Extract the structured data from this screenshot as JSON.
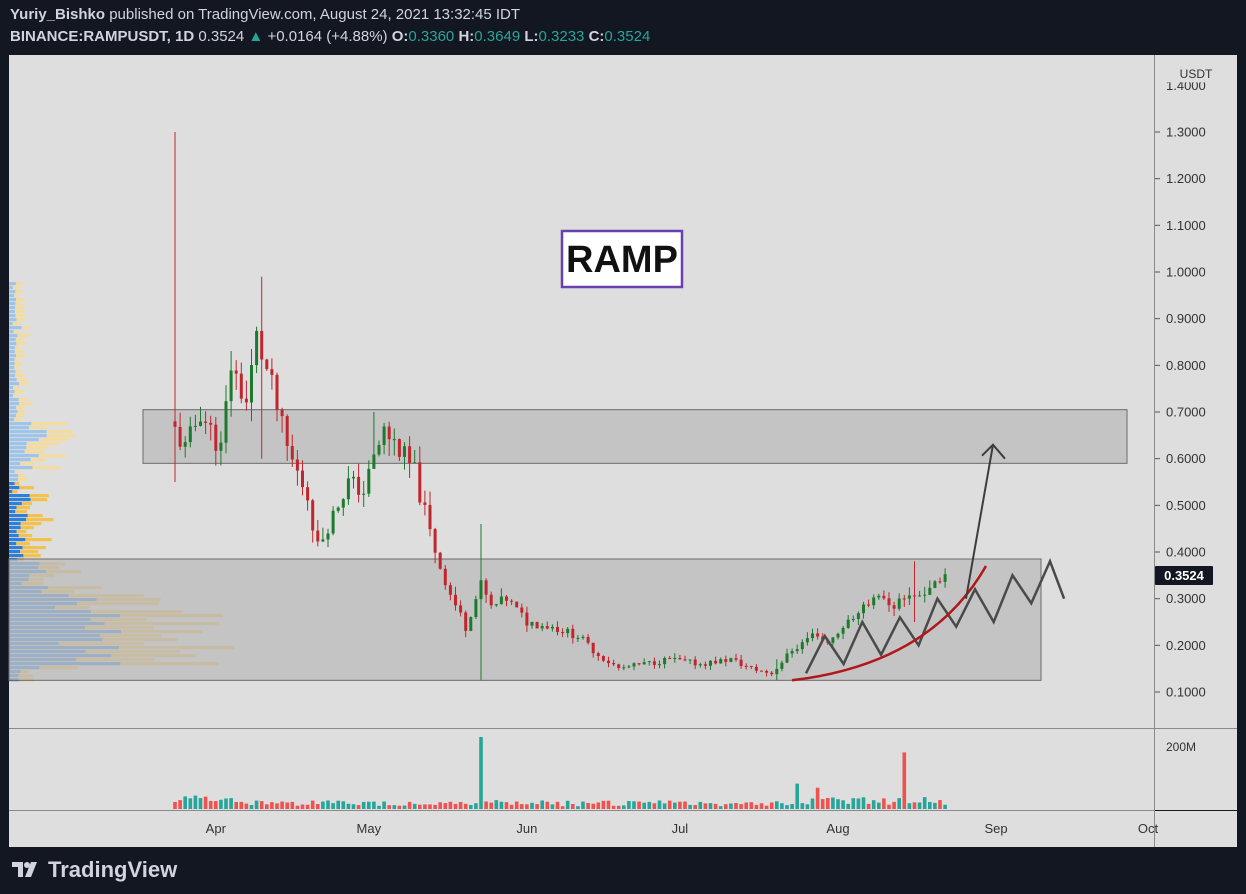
{
  "header": {
    "author": "Yuriy_Bishko",
    "published": "published on TradingView.com, August 24, 2021 13:32:45 IDT",
    "symbol": "BINANCE:RAMPUSDT, 1D",
    "last": "0.3524",
    "change": "+0.0164 (+4.88%)",
    "open_label": "O:",
    "open": "0.3360",
    "high_label": "H:",
    "high": "0.3649",
    "low_label": "L:",
    "low": "0.3233",
    "close_label": "C:",
    "close": "0.3524"
  },
  "annotation": {
    "text": "RAMP",
    "border": "#6a3fb0"
  },
  "price_axis": {
    "unit": "USDT",
    "ticks": [
      "1.3000",
      "1.2000",
      "1.1000",
      "1.0000",
      "0.9000",
      "0.8000",
      "0.7000",
      "0.6000",
      "0.5000",
      "0.4000",
      "0.3000",
      "0.2000",
      "0.1000"
    ],
    "partial_top_tick": "1.4000",
    "current_price": "0.3524"
  },
  "volume_axis": {
    "tick": "200M"
  },
  "time_axis": {
    "labels": [
      "Apr",
      "May",
      "Jun",
      "Jul",
      "Aug",
      "Sep",
      "Oct"
    ]
  },
  "footer": {
    "brand": "TradingView"
  },
  "colors": {
    "background": "#131722",
    "plot": "#dedede",
    "up": "#1b7a2c",
    "down": "#c0262c",
    "vol_up": "#26a69a",
    "vol_down": "#ef5350",
    "zone": "#bcbcbc",
    "curve": "#b0181c",
    "zigzag": "#4a4a4a",
    "profile_blue": "#2f7fd8",
    "profile_yellow": "#f2c14e"
  },
  "chart_data": {
    "type": "candlestick",
    "symbol": "BINANCE:RAMPUSDT",
    "interval": "1D",
    "y_range": [
      0.05,
      1.45
    ],
    "zones": [
      {
        "from": 0.59,
        "to": 0.705
      },
      {
        "from": 0.125,
        "to": 0.385
      }
    ],
    "key_days": [
      {
        "date": "2021-03-24",
        "high": 1.3,
        "low": 0.55
      },
      {
        "date": "2021-04-10",
        "high": 0.99,
        "low": 0.6
      },
      {
        "date": "2021-05-02",
        "high": 0.7,
        "low": 0.55
      },
      {
        "date": "2021-05-23",
        "high": 0.46,
        "low": 0.125
      },
      {
        "date": "2021-07-20",
        "high": 0.17,
        "low": 0.125
      },
      {
        "date": "2021-08-16",
        "high": 0.38,
        "low": 0.25
      },
      {
        "date": "2021-08-24",
        "open": 0.336,
        "high": 0.3649,
        "low": 0.3233,
        "close": 0.3524
      }
    ],
    "volume_peaks": [
      {
        "date": "2021-05-23",
        "volume": 210000000
      },
      {
        "date": "2021-08-14",
        "volume": 165000000
      }
    ],
    "projection_target": 0.63
  }
}
